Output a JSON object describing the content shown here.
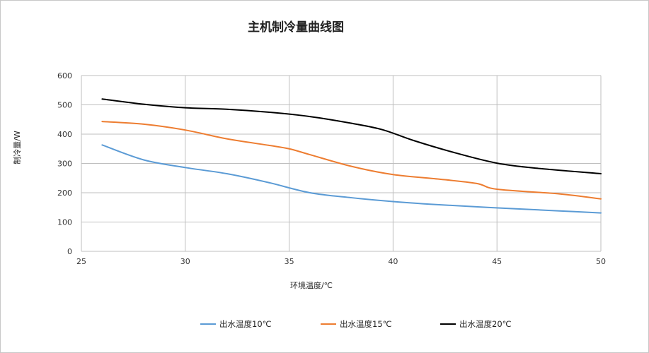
{
  "chart_data": {
    "type": "line",
    "title": "主机制冷量曲线图",
    "xlabel": "环境温度/℃",
    "ylabel": "制冷量/W",
    "xlim": [
      25,
      50
    ],
    "ylim": [
      0,
      600
    ],
    "xticks": [
      25,
      30,
      35,
      40,
      45,
      50
    ],
    "yticks": [
      0,
      100,
      200,
      300,
      400,
      500,
      600
    ],
    "grid": true,
    "legend_position": "bottom",
    "series": [
      {
        "name": "出水温度10℃",
        "color": "#5b9bd5",
        "points": [
          [
            26,
            363
          ],
          [
            28,
            312
          ],
          [
            30,
            286
          ],
          [
            32,
            265
          ],
          [
            34,
            235
          ],
          [
            36,
            200
          ],
          [
            38,
            183
          ],
          [
            40,
            170
          ],
          [
            42,
            160
          ],
          [
            44,
            152
          ],
          [
            46,
            145
          ],
          [
            48,
            138
          ],
          [
            50,
            131
          ]
        ]
      },
      {
        "name": "出水温度15℃",
        "color": "#ed7d31",
        "points": [
          [
            26,
            443
          ],
          [
            28,
            434
          ],
          [
            30,
            414
          ],
          [
            32,
            384
          ],
          [
            34,
            362
          ],
          [
            35,
            350
          ],
          [
            36,
            330
          ],
          [
            38,
            290
          ],
          [
            40,
            262
          ],
          [
            42,
            248
          ],
          [
            44,
            232
          ],
          [
            45,
            212
          ],
          [
            48,
            196
          ],
          [
            50,
            179
          ]
        ]
      },
      {
        "name": "出水温度20℃",
        "color": "#000000",
        "points": [
          [
            26,
            520
          ],
          [
            28,
            502
          ],
          [
            30,
            490
          ],
          [
            32,
            485
          ],
          [
            34,
            475
          ],
          [
            36,
            460
          ],
          [
            38,
            437
          ],
          [
            39.5,
            415
          ],
          [
            41,
            378
          ],
          [
            43,
            336
          ],
          [
            45,
            301
          ],
          [
            47,
            283
          ],
          [
            50,
            265
          ]
        ]
      }
    ]
  }
}
